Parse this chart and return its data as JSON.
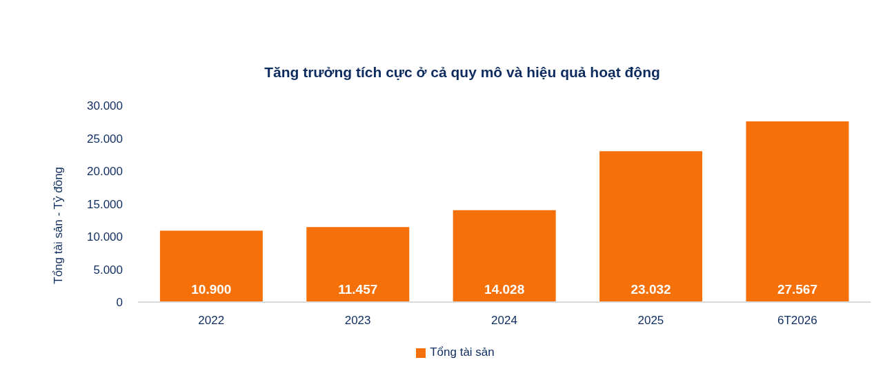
{
  "chart_data": {
    "type": "bar",
    "title": "Tăng trưởng tích cực ở cả quy mô và hiệu quả hoạt động",
    "ylabel": "Tổng tài sản - Tỷ đồng",
    "categories": [
      "2022",
      "2023",
      "2024",
      "2025",
      "6T2026"
    ],
    "series": [
      {
        "name": "Tổng tài sản",
        "color": "#f57009",
        "values": [
          10900,
          11457,
          14028,
          23032,
          27567
        ],
        "value_labels": [
          "10.900",
          "11.457",
          "14.028",
          "23.032",
          "27.567"
        ]
      }
    ],
    "ylim": [
      0,
      30000
    ],
    "yticks": [
      0,
      {
        "value": 5000,
        "label": "5.000"
      },
      {
        "value": 10000,
        "label": "10.000"
      },
      {
        "value": 15000,
        "label": "15.000"
      },
      {
        "value": 20000,
        "label": "20.000"
      },
      {
        "value": 25000,
        "label": "25.000"
      },
      {
        "value": 30000,
        "label": "30.000"
      }
    ],
    "legend": "bottom"
  }
}
